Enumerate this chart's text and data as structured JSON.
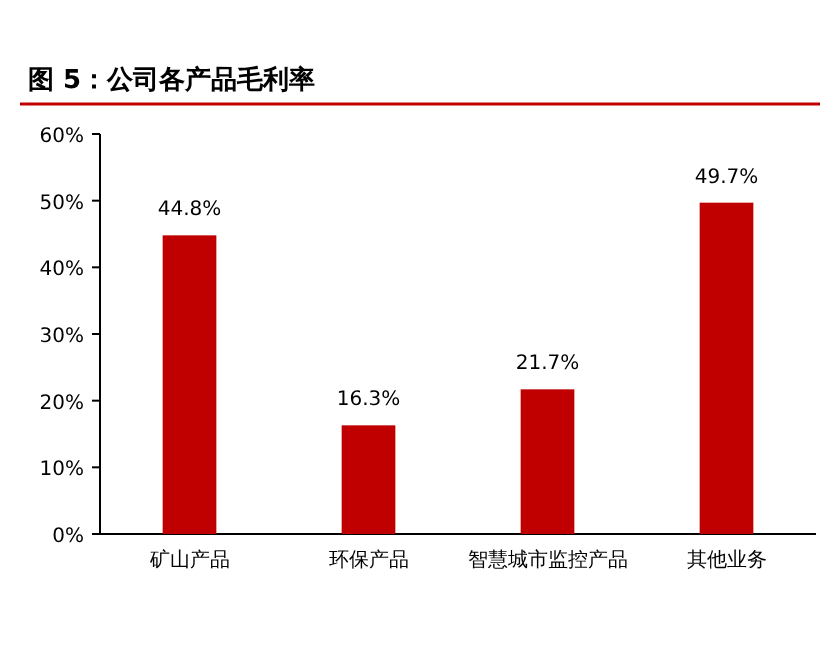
{
  "chart_data": {
    "type": "bar",
    "title": "图 5：公司各产品毛利率",
    "categories": [
      "矿山产品",
      "环保产品",
      "智慧城市监控产品",
      "其他业务"
    ],
    "values": [
      44.8,
      16.3,
      21.7,
      49.7
    ],
    "value_labels": [
      "44.8%",
      "16.3%",
      "21.7%",
      "49.7%"
    ],
    "color": "#c00000",
    "ylim": [
      0,
      60
    ],
    "yticks": [
      {
        "value": 0,
        "label": "0%"
      },
      {
        "value": 10,
        "label": "10%"
      },
      {
        "value": 20,
        "label": "20%"
      },
      {
        "value": 30,
        "label": "30%"
      },
      {
        "value": 40,
        "label": "40%"
      },
      {
        "value": 50,
        "label": "50%"
      },
      {
        "value": 60,
        "label": "60%"
      }
    ],
    "grid": false
  }
}
